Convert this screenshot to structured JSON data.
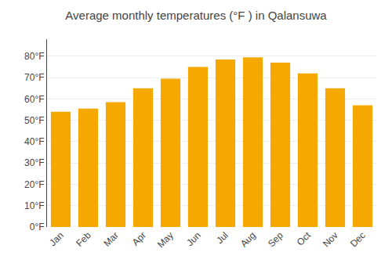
{
  "chart_data": {
    "type": "bar",
    "title": "Average monthly temperatures (°F ) in Qalansuwa",
    "categories": [
      "Jan",
      "Feb",
      "Mar",
      "Apr",
      "May",
      "Jun",
      "Jul",
      "Aug",
      "Sep",
      "Oct",
      "Nov",
      "Dec"
    ],
    "values": [
      54,
      55.5,
      58.5,
      65,
      69.5,
      75,
      78.5,
      79.5,
      77,
      72,
      65,
      57
    ],
    "color": "#F5A800",
    "ylim": [
      0,
      88
    ],
    "yticks": [
      {
        "value": 0,
        "label": "0°F"
      },
      {
        "value": 10,
        "label": "10°F"
      },
      {
        "value": 20,
        "label": "20°F"
      },
      {
        "value": 30,
        "label": "30°F"
      },
      {
        "value": 40,
        "label": "40°F"
      },
      {
        "value": 50,
        "label": "50°F"
      },
      {
        "value": 60,
        "label": "60°F"
      },
      {
        "value": 70,
        "label": "70°F"
      },
      {
        "value": 80,
        "label": "80°F"
      }
    ],
    "grid": true
  }
}
